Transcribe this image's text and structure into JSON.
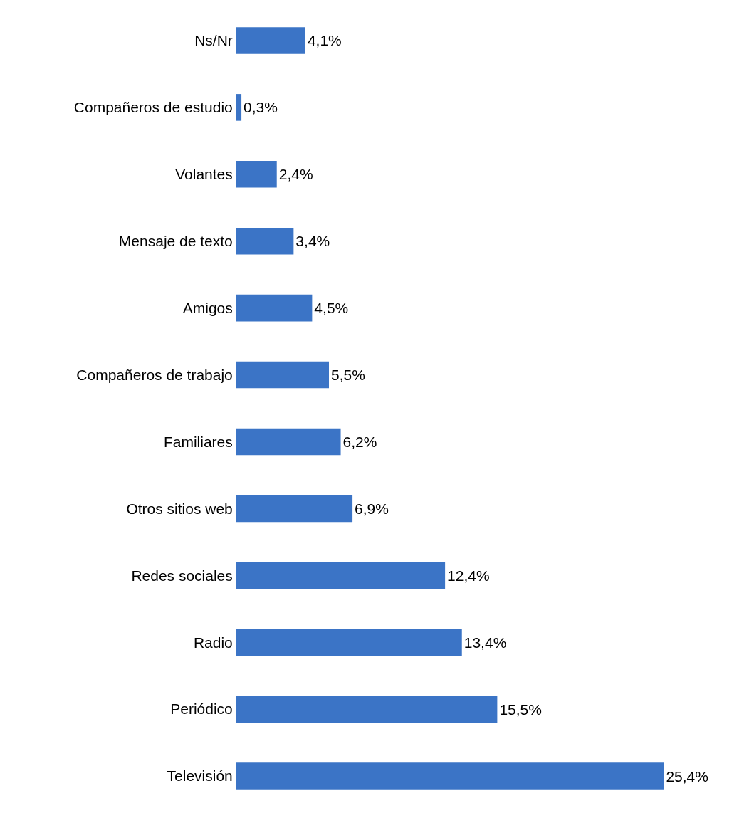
{
  "chart_data": {
    "type": "bar",
    "orientation": "horizontal",
    "categories": [
      "Ns/Nr",
      "Compañeros de estudio",
      "Volantes",
      "Mensaje de texto",
      "Amigos",
      "Compañeros de trabajo",
      "Familiares",
      "Otros sitios web",
      "Redes sociales",
      "Radio",
      "Periódico",
      "Televisión"
    ],
    "values": [
      4.1,
      0.3,
      2.4,
      3.4,
      4.5,
      5.5,
      6.2,
      6.9,
      12.4,
      13.4,
      15.5,
      25.4
    ],
    "value_labels": [
      "4,1%",
      "0,3%",
      "2,4%",
      "3,4%",
      "4,5%",
      "5,5%",
      "6,2%",
      "6,9%",
      "12,4%",
      "13,4%",
      "15,5%",
      "25,4%"
    ],
    "color": "#3b74c6"
  }
}
